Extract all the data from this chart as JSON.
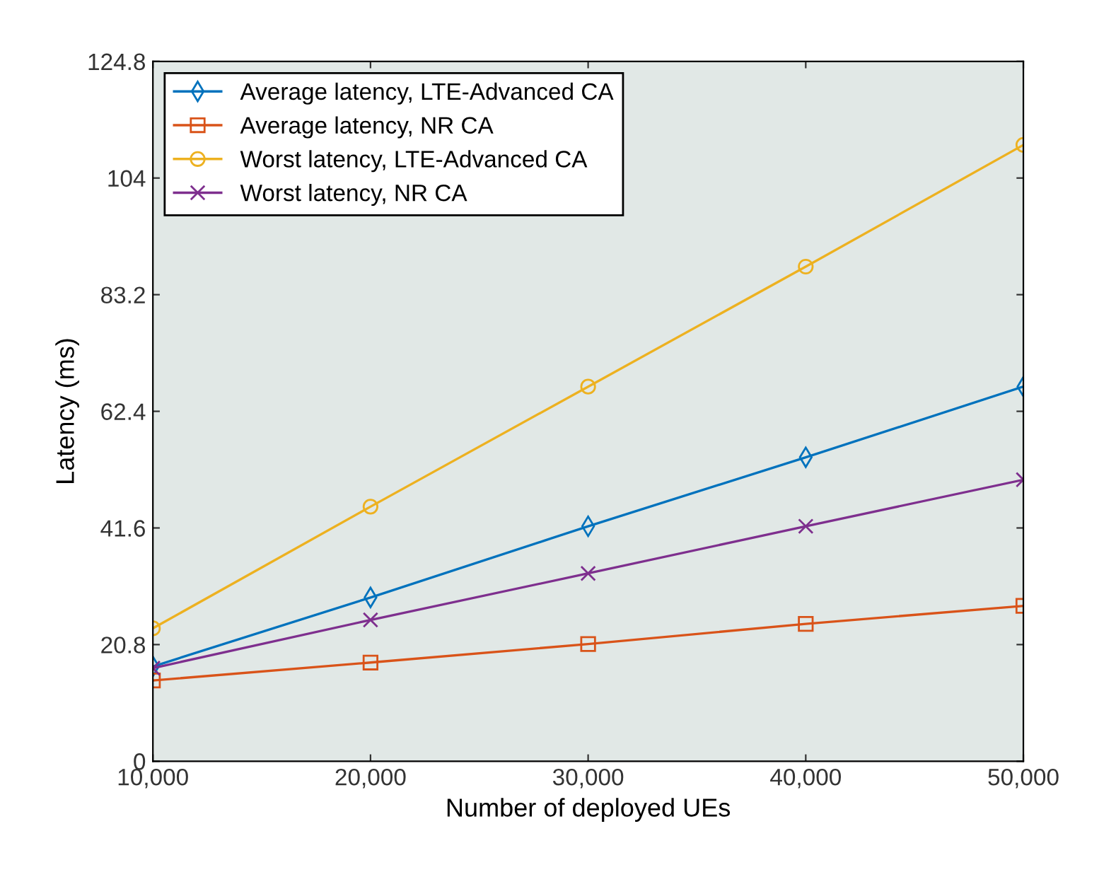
{
  "chart_data": {
    "type": "line",
    "xlabel": "Number of deployed UEs",
    "ylabel": "Latency (ms)",
    "x": [
      10000,
      20000,
      30000,
      40000,
      50000
    ],
    "xlim": [
      10000,
      50000
    ],
    "xticks": [
      {
        "value": 10000,
        "label": "10,000"
      },
      {
        "value": 20000,
        "label": "20,000"
      },
      {
        "value": 30000,
        "label": "30,000"
      },
      {
        "value": 40000,
        "label": "40,000"
      },
      {
        "value": 50000,
        "label": "50,000"
      }
    ],
    "ylim": [
      0,
      124.8
    ],
    "yticks": [
      0,
      20.8,
      41.6,
      62.4,
      83.2,
      104,
      124.8
    ],
    "grid": false,
    "legend": "top left",
    "series": [
      {
        "name": "Average latency, LTE-Advanced CA",
        "color": "#0072bd",
        "marker": "diamond",
        "values": [
          16.9,
          29.2,
          41.9,
          54.2,
          66.8
        ]
      },
      {
        "name": "Average latency, NR CA",
        "color": "#d95319",
        "marker": "square",
        "values": [
          14.4,
          17.6,
          20.9,
          24.5,
          27.7
        ]
      },
      {
        "name": "Worst latency, LTE-Advanced CA",
        "color": "#edb120",
        "marker": "circle",
        "values": [
          23.7,
          45.4,
          66.8,
          88.2,
          109.9
        ]
      },
      {
        "name": "Worst latency, NR CA",
        "color": "#7e2f8e",
        "marker": "cross",
        "values": [
          16.6,
          25.2,
          33.5,
          41.9,
          50.2
        ]
      }
    ]
  }
}
